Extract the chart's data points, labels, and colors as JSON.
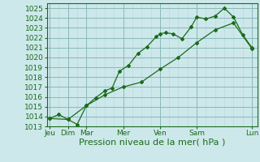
{
  "xlabel": "Pression niveau de la mer( hPa )",
  "ylim": [
    1013,
    1025.5
  ],
  "yticks": [
    1013,
    1014,
    1015,
    1016,
    1017,
    1018,
    1019,
    1020,
    1021,
    1022,
    1023,
    1024,
    1025
  ],
  "day_positions": [
    0,
    1,
    2,
    4,
    6,
    8,
    11
  ],
  "day_labels": [
    "Jeu",
    "Dim",
    "Mar",
    "Mer",
    "Ven",
    "Sam",
    "Lun"
  ],
  "xlim": [
    -0.15,
    11.3
  ],
  "line1_x": [
    0,
    0.5,
    1.0,
    1.5,
    2.0,
    2.5,
    3.0,
    3.4,
    3.8,
    4.3,
    4.8,
    5.3,
    5.8,
    6.0,
    6.3,
    6.7,
    7.2,
    7.7,
    8.0,
    8.5,
    9.0,
    9.5,
    10.0,
    10.5,
    11.0
  ],
  "line1_y": [
    1013.8,
    1014.2,
    1013.7,
    1013.2,
    1015.1,
    1015.9,
    1016.6,
    1016.9,
    1018.6,
    1019.2,
    1020.4,
    1021.1,
    1022.1,
    1022.4,
    1022.5,
    1022.4,
    1021.9,
    1023.1,
    1024.1,
    1023.9,
    1024.2,
    1025.0,
    1024.1,
    1022.3,
    1021.0
  ],
  "line2_x": [
    0,
    1.0,
    2.0,
    3.0,
    4.0,
    5.0,
    6.0,
    7.0,
    8.0,
    9.0,
    10.0,
    11.0
  ],
  "line2_y": [
    1013.8,
    1013.7,
    1015.1,
    1016.2,
    1017.0,
    1017.5,
    1018.8,
    1020.0,
    1021.5,
    1022.8,
    1023.5,
    1020.9
  ],
  "line_color": "#1a6b1a",
  "bg_color": "#cde8ea",
  "grid_minor_color": "#b5d5d7",
  "grid_major_color": "#8ab8ba",
  "xlabel_fontsize": 8,
  "tick_fontsize": 6.5
}
